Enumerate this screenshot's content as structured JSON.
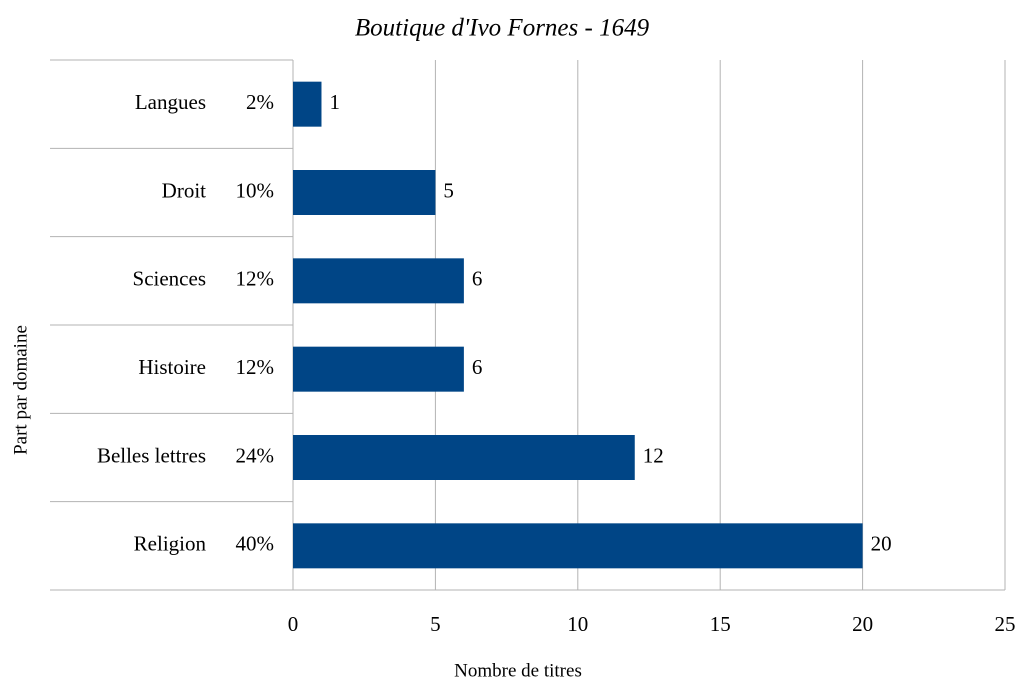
{
  "chart_data": {
    "type": "barh",
    "title": "Boutique d'Ivo Fornes - 1649",
    "categories": [
      "Langues",
      "Droit",
      "Sciences",
      "Histoire",
      "Belles lettres",
      "Religion"
    ],
    "category_shares": [
      "2%",
      "10%",
      "12%",
      "12%",
      "24%",
      "40%"
    ],
    "values": [
      1,
      5,
      6,
      6,
      12,
      20
    ],
    "color": "#004586",
    "xlim": [
      0,
      25
    ],
    "xticks": [
      0,
      5,
      10,
      15,
      20,
      25
    ],
    "grid": true,
    "xlabel": "Nombre de titres",
    "ylabel": "Part par domaine"
  }
}
